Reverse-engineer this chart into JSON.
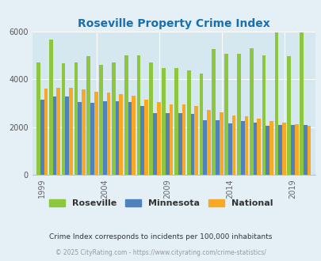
{
  "title": "Roseville Property Crime Index",
  "title_color": "#1a6faf",
  "subtitle": "Crime Index corresponds to incidents per 100,000 inhabitants",
  "footer": "© 2025 CityRating.com - https://www.cityrating.com/crime-statistics/",
  "years": [
    1999,
    2000,
    2001,
    2002,
    2003,
    2004,
    2005,
    2006,
    2007,
    2008,
    2009,
    2010,
    2011,
    2012,
    2013,
    2014,
    2015,
    2016,
    2017,
    2018,
    2019,
    2020
  ],
  "roseville": [
    4700,
    5650,
    4650,
    4700,
    4950,
    4600,
    4700,
    5000,
    5000,
    4700,
    4480,
    4470,
    4380,
    4240,
    5250,
    5050,
    5050,
    5300,
    5000,
    5950,
    4970,
    5950
  ],
  "minnesota": [
    3150,
    3280,
    3260,
    3060,
    3000,
    3080,
    3080,
    3050,
    2870,
    2580,
    2570,
    2570,
    2540,
    2280,
    2270,
    2140,
    2250,
    2200,
    2050,
    2080,
    2070,
    2080
  ],
  "national": [
    3620,
    3650,
    3650,
    3590,
    3480,
    3430,
    3360,
    3310,
    3150,
    3040,
    2960,
    2940,
    2880,
    2730,
    2600,
    2490,
    2450,
    2360,
    2260,
    2200,
    2110,
    2050
  ],
  "roseville_color": "#8dc63f",
  "minnesota_color": "#4f81bd",
  "national_color": "#f9a825",
  "bg_color": "#e4f0f6",
  "plot_bg": "#d5e8f0",
  "ylim": [
    0,
    6000
  ],
  "yticks": [
    0,
    2000,
    4000,
    6000
  ],
  "tick_years": [
    1999,
    2004,
    2009,
    2014,
    2019
  ],
  "legend_labels": [
    "Roseville",
    "Minnesota",
    "National"
  ]
}
